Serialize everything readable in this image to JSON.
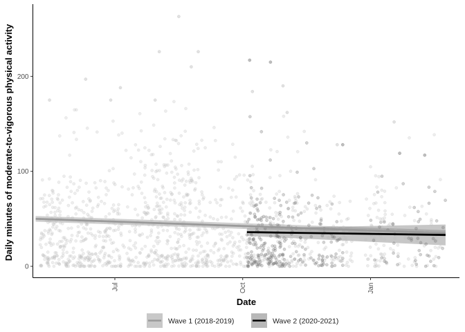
{
  "chart_data": {
    "type": "scatter",
    "title": "",
    "xlabel": "Date",
    "ylabel": "Daily minutes of moderate-to-vigorous physical activity",
    "x_type": "date",
    "xlim": [
      "2018-05-03",
      "2019-03-06"
    ],
    "ylim": [
      -12,
      276
    ],
    "x_ticks": [
      {
        "date": "2018-07-01",
        "label": "Jul"
      },
      {
        "date": "2018-10-01",
        "label": "Oct"
      },
      {
        "date": "2019-01-01",
        "label": "Jan"
      }
    ],
    "y_ticks": [
      0,
      100,
      200
    ],
    "grid": false,
    "legend_position": "bottom",
    "series": [
      {
        "name": "Wave 1 (2018-2019)",
        "color": "#9a9a9a",
        "trend_start": {
          "date": "2018-05-05",
          "value": 50
        },
        "trend_end": {
          "date": "2019-02-24",
          "value": 35
        },
        "ribbon_halfwidth": [
          3,
          3
        ],
        "point_color": "#bdbdbd",
        "point_clusters": [
          {
            "start": "2018-05-08",
            "end": "2018-05-26",
            "count": 130,
            "median": 38,
            "spread": 28
          },
          {
            "start": "2018-05-26",
            "end": "2018-06-18",
            "count": 150,
            "median": 36,
            "spread": 30
          },
          {
            "start": "2018-06-18",
            "end": "2018-07-12",
            "count": 120,
            "median": 40,
            "spread": 32
          },
          {
            "start": "2018-07-12",
            "end": "2018-08-05",
            "count": 150,
            "median": 45,
            "spread": 35
          },
          {
            "start": "2018-08-05",
            "end": "2018-09-05",
            "count": 230,
            "median": 48,
            "spread": 38
          },
          {
            "start": "2018-09-05",
            "end": "2018-10-03",
            "count": 120,
            "median": 40,
            "spread": 30
          },
          {
            "start": "2018-10-03",
            "end": "2018-11-15",
            "count": 150,
            "median": 38,
            "spread": 28
          },
          {
            "start": "2018-11-15",
            "end": "2018-12-20",
            "count": 80,
            "median": 33,
            "spread": 25
          },
          {
            "start": "2018-12-28",
            "end": "2019-01-12",
            "count": 60,
            "median": 34,
            "spread": 26
          },
          {
            "start": "2019-01-12",
            "end": "2019-02-22",
            "count": 50,
            "median": 30,
            "spread": 24
          }
        ],
        "outliers": [
          {
            "date": "2018-08-16",
            "value": 263
          },
          {
            "date": "2018-08-02",
            "value": 226
          },
          {
            "date": "2018-08-30",
            "value": 226
          },
          {
            "date": "2018-06-10",
            "value": 197
          },
          {
            "date": "2018-06-28",
            "value": 175
          },
          {
            "date": "2018-07-05",
            "value": 188
          },
          {
            "date": "2018-08-25",
            "value": 210
          },
          {
            "date": "2018-10-08",
            "value": 184
          },
          {
            "date": "2018-10-30",
            "value": 190
          },
          {
            "date": "2018-05-15",
            "value": 175
          },
          {
            "date": "2018-07-30",
            "value": 175
          },
          {
            "date": "2018-11-02",
            "value": 162
          },
          {
            "date": "2018-12-08",
            "value": 128
          },
          {
            "date": "2019-01-18",
            "value": 152
          }
        ]
      },
      {
        "name": "Wave 2 (2020-2021)",
        "color": "#000000",
        "trend_start": {
          "date": "2018-10-04",
          "value": 36
        },
        "trend_end": {
          "date": "2019-02-24",
          "value": 33
        },
        "ribbon_halfwidth": [
          4,
          11
        ],
        "point_color": "#6e6e6e",
        "point_clusters": [
          {
            "start": "2018-10-04",
            "end": "2018-10-28",
            "count": 140,
            "median": 30,
            "spread": 26
          },
          {
            "start": "2018-10-28",
            "end": "2018-11-30",
            "count": 80,
            "median": 30,
            "spread": 26
          },
          {
            "start": "2018-11-30",
            "end": "2018-12-14",
            "count": 20,
            "median": 28,
            "spread": 22
          },
          {
            "start": "2019-01-01",
            "end": "2019-02-24",
            "count": 50,
            "median": 28,
            "spread": 24
          }
        ],
        "outliers": [
          {
            "date": "2018-10-21",
            "value": 215
          },
          {
            "date": "2018-10-06",
            "value": 217
          },
          {
            "date": "2018-12-12",
            "value": 128
          },
          {
            "date": "2019-01-22",
            "value": 119
          },
          {
            "date": "2019-02-09",
            "value": 117
          }
        ]
      }
    ]
  }
}
